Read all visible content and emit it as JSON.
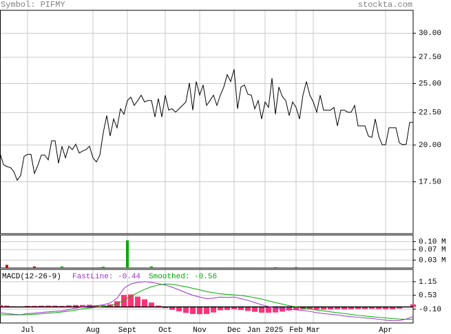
{
  "header": {
    "symbol": "Symbol: PIFMY",
    "site": "stockta.com"
  },
  "chart_data": [
    {
      "type": "line",
      "log_scale": true,
      "grid": true,
      "ylim": [
        14.5,
        32.6
      ],
      "yticks": [
        {
          "value": 17.5,
          "label": "17.50"
        },
        {
          "value": 20,
          "label": "20.00"
        },
        {
          "value": 22.5,
          "label": "22.50"
        },
        {
          "value": 25,
          "label": "25.00"
        },
        {
          "value": 27.5,
          "label": "27.50"
        },
        {
          "value": 30,
          "label": "30.00"
        }
      ],
      "xticks": [
        {
          "value": 8,
          "label": "Jul"
        },
        {
          "value": 27,
          "label": "Aug"
        },
        {
          "value": 37,
          "label": "Sept"
        },
        {
          "value": 48,
          "label": "Oct"
        },
        {
          "value": 58,
          "label": "Nov"
        },
        {
          "value": 68,
          "label": "Dec"
        },
        {
          "value": 77,
          "label": "Jan 2025"
        },
        {
          "value": 86,
          "label": "Feb"
        },
        {
          "value": 91,
          "label": "Mar"
        },
        {
          "value": 112,
          "label": "Apr"
        }
      ],
      "series": [
        {
          "color": "#000000",
          "values": [
            19.42,
            18.63,
            18.49,
            18.44,
            18.17,
            17.6,
            17.91,
            19.19,
            19.33,
            19.33,
            18.04,
            18.58,
            19.28,
            19.28,
            18.95,
            20.31,
            20.31,
            18.72,
            19.91,
            19.09,
            19.91,
            19.67,
            20.06,
            19.42,
            19.57,
            19.67,
            19.91,
            19.09,
            18.81,
            19.28,
            20.92,
            22.25,
            20.66,
            21.98,
            21.29,
            22.81,
            22.36,
            23.5,
            23.79,
            23.09,
            23.5,
            23.96,
            23.38,
            23.5,
            23.5,
            22.14,
            23.67,
            22.14,
            23.96,
            22.7,
            22.81,
            22.53,
            22.81,
            23.09,
            23.38,
            25.05,
            22.7,
            25.18,
            23.96,
            24.87,
            23.09,
            23.5,
            23.96,
            23.09,
            23.96,
            24.68,
            25.81,
            25.18,
            26.32,
            22.81,
            24.68,
            24.87,
            24.05,
            23.96,
            22.81,
            23.5,
            21.98,
            23.38,
            22.92,
            25.49,
            22.36,
            24.68,
            23.85,
            23.5,
            22.25,
            23.38,
            22.92,
            21.98,
            23.96,
            25.18,
            23.96,
            23.38,
            22.53,
            23.96,
            22.7,
            22.7,
            22.7,
            22.92,
            21.44,
            22.7,
            22.7,
            22.53,
            22.53,
            23.09,
            21.44,
            21.44,
            21.44,
            20.66,
            20.56,
            21.98,
            20.66,
            20.01,
            20.01,
            21.29,
            21.29,
            21.29,
            20.16,
            20.01,
            20.06,
            21.71,
            21.71
          ]
        }
      ]
    },
    {
      "type": "bar",
      "grid": true,
      "ylim": [
        0,
        0.125
      ],
      "yticks": [
        {
          "value": 0.03,
          "label": "0.03 M"
        },
        {
          "value": 0.07,
          "label": "0.07 M"
        },
        {
          "value": 0.1,
          "label": "0.10 M"
        }
      ],
      "up_color": "#00aa00",
      "down_color": "#cc0000",
      "values": [
        0,
        0,
        0.012,
        0,
        0,
        0,
        0,
        0,
        0,
        0,
        0.006,
        0,
        0,
        0,
        0,
        0,
        0,
        0,
        0.006,
        0,
        0,
        0,
        0,
        0,
        0,
        0,
        0,
        0,
        0,
        0.003,
        0.005,
        0,
        0,
        0,
        0,
        0,
        0,
        0.105,
        0,
        0,
        0,
        0,
        0,
        0,
        0.006,
        0,
        0,
        0,
        0,
        0,
        0,
        0,
        0,
        0,
        0,
        0,
        0,
        0,
        0,
        0,
        0,
        0,
        0,
        0,
        0,
        0,
        0,
        0,
        0,
        0,
        0,
        0,
        0,
        0,
        0,
        0,
        0,
        0,
        0,
        0,
        0.003,
        0,
        0,
        0,
        0,
        0,
        0.003,
        0,
        0,
        0,
        0,
        0,
        0,
        0,
        0,
        0,
        0,
        0,
        0,
        0,
        0,
        0,
        0,
        0,
        0,
        0,
        0,
        0,
        0,
        0,
        0,
        0,
        0,
        0,
        0,
        0,
        0,
        0,
        0,
        0,
        0
      ]
    },
    {
      "type": "macd",
      "title": "MACD(12-26-9)",
      "grid": true,
      "ylim": [
        -0.73,
        1.71
      ],
      "yticks": [
        {
          "value": -0.1,
          "label": "-0.10"
        },
        0.53,
        1.15
      ],
      "series": [
        {
          "name": "FastLine: -0.44",
          "color": "#9933cc",
          "values": [
            -0.26,
            -0.3,
            -0.33,
            -0.35,
            -0.3,
            -0.28,
            -0.25,
            -0.22,
            -0.2,
            -0.18,
            -0.12,
            -0.05,
            0.0,
            0.05,
            0.06,
            0.1,
            0.18,
            0.4,
            0.85,
            1.05,
            1.12,
            1.15,
            1.12,
            1.06,
            1.0,
            0.9,
            0.78,
            0.65,
            0.53,
            0.45,
            0.38,
            0.4,
            0.45,
            0.43,
            0.45,
            0.38,
            0.3,
            0.2,
            0.1,
            0.02,
            -0.05,
            -0.08,
            -0.1,
            -0.13,
            -0.16,
            -0.2,
            -0.26,
            -0.3,
            -0.33,
            -0.36,
            -0.41,
            -0.44,
            -0.47,
            -0.5,
            -0.52,
            -0.56,
            -0.6,
            -0.63,
            -0.62,
            -0.55,
            -0.44
          ]
        },
        {
          "name": "Smoothed: -0.56",
          "color": "#00aa00",
          "values": [
            -0.35,
            -0.36,
            -0.36,
            -0.36,
            -0.35,
            -0.33,
            -0.31,
            -0.28,
            -0.26,
            -0.23,
            -0.19,
            -0.14,
            -0.09,
            -0.05,
            -0.01,
            0.02,
            0.06,
            0.14,
            0.3,
            0.48,
            0.65,
            0.8,
            0.92,
            1.0,
            1.05,
            1.03,
            0.98,
            0.92,
            0.85,
            0.78,
            0.7,
            0.65,
            0.6,
            0.57,
            0.55,
            0.52,
            0.48,
            0.42,
            0.36,
            0.28,
            0.2,
            0.13,
            0.06,
            0.0,
            -0.05,
            -0.09,
            -0.14,
            -0.18,
            -0.22,
            -0.26,
            -0.3,
            -0.34,
            -0.38,
            -0.41,
            -0.44,
            -0.47,
            -0.5,
            -0.53,
            -0.55,
            -0.56,
            -0.56
          ]
        }
      ],
      "histogram": {
        "color": "#ff3377",
        "values": [
          0.09,
          0.06,
          0.03,
          0.01,
          0.05,
          0.05,
          0.06,
          0.06,
          0.06,
          0.05,
          0.07,
          0.09,
          0.09,
          0.1,
          0.07,
          0.08,
          0.12,
          0.26,
          0.55,
          0.57,
          0.47,
          0.35,
          0.2,
          0.06,
          -0.05,
          -0.13,
          -0.2,
          -0.27,
          -0.32,
          -0.33,
          -0.32,
          -0.25,
          -0.15,
          -0.14,
          -0.1,
          -0.14,
          -0.18,
          -0.22,
          -0.26,
          -0.26,
          -0.25,
          -0.21,
          -0.16,
          -0.13,
          -0.11,
          -0.11,
          -0.12,
          -0.12,
          -0.11,
          -0.1,
          -0.11,
          -0.1,
          -0.09,
          -0.09,
          -0.08,
          -0.09,
          -0.1,
          -0.1,
          -0.07,
          0.01,
          0.12
        ]
      }
    }
  ]
}
